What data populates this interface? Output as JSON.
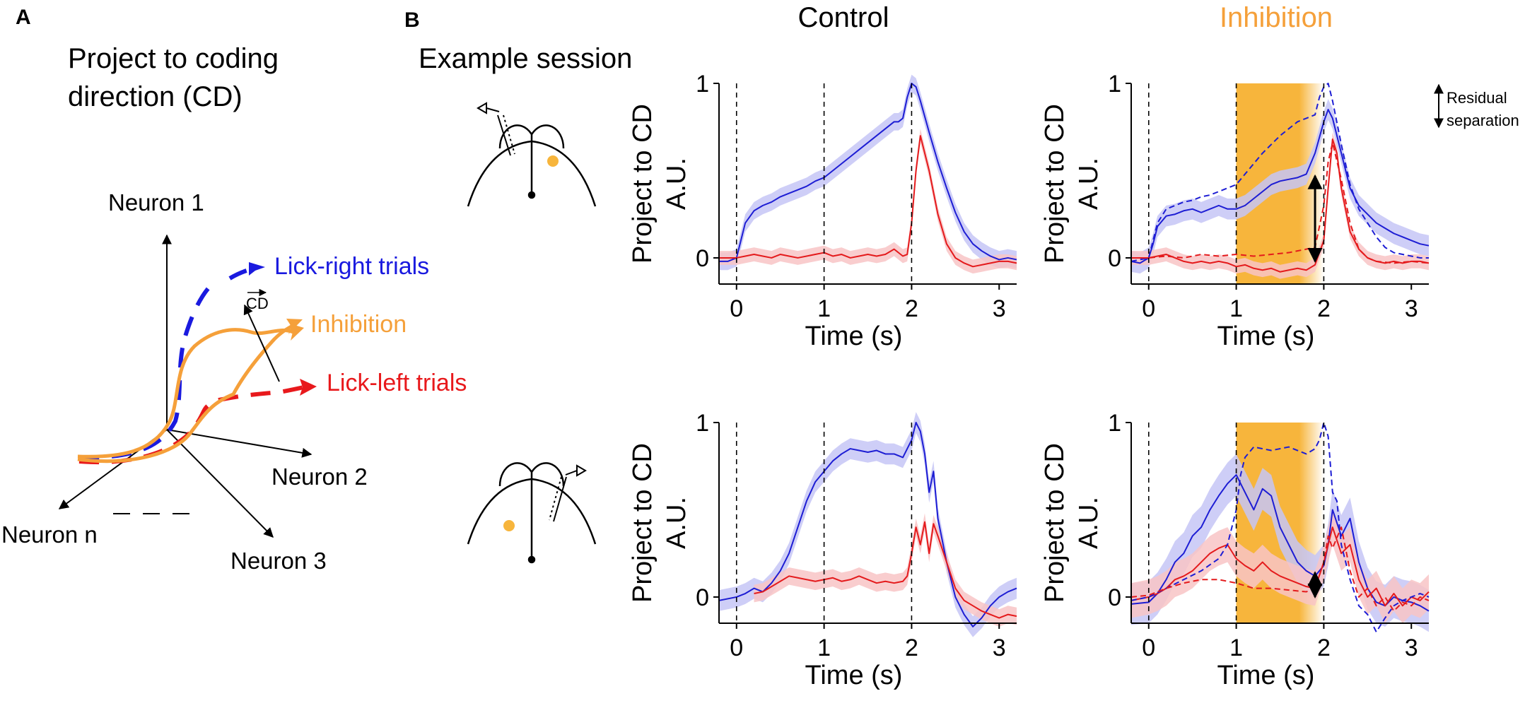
{
  "panel_a": {
    "letter": "A",
    "title_lines": [
      "Project to coding",
      "direction (CD)"
    ],
    "axes": {
      "neuron1": "Neuron 1",
      "neuron2": "Neuron 2",
      "neuron3": "Neuron 3",
      "neuron_n": "Neuron n"
    },
    "traj_labels": {
      "right": "Lick-right trials",
      "inhibition": "Inhibition",
      "left": "Lick-left trials",
      "cd": "CD"
    },
    "colors": {
      "right": "#1a1adf",
      "left": "#e8191c",
      "inhibition": "#f5a03a",
      "axis": "#000000"
    }
  },
  "panel_b": {
    "letter": "B",
    "example_label": "Example session",
    "col_titles": {
      "control": "Control",
      "inhibition": "Inhibition"
    },
    "legend": {
      "line1": "Residual",
      "line2": "separation"
    },
    "ylabel_line1": "Project to CD",
    "ylabel_line2": "A.U.",
    "xlabel": "Time (s)",
    "colors": {
      "right": "#1d1dd4",
      "left": "#e41a1c",
      "right_band": "#c5c5f6",
      "left_band": "#f8c4c6",
      "stim": "#f7b53c"
    }
  },
  "chart_data": [
    {
      "id": "control-top",
      "type": "line",
      "xlabel": "Time (s)",
      "ylabel": "Project to CD A.U.",
      "xlim": [
        -0.2,
        3.2
      ],
      "ylim": [
        -0.15,
        1.0
      ],
      "xticks": [
        0,
        1,
        2,
        3
      ],
      "yticks": [
        0,
        1
      ],
      "vlines": [
        0,
        1,
        2
      ],
      "series": [
        {
          "x": [
            -0.2,
            -0.1,
            0,
            0.05,
            0.1,
            0.2,
            0.3,
            0.4,
            0.5,
            0.6,
            0.7,
            0.8,
            0.9,
            1.0,
            1.1,
            1.2,
            1.3,
            1.4,
            1.5,
            1.6,
            1.7,
            1.8,
            1.85,
            1.9,
            1.95,
            2.0,
            2.05,
            2.1,
            2.2,
            2.3,
            2.4,
            2.5,
            2.6,
            2.7,
            2.8,
            2.9,
            3.0,
            3.1,
            3.2
          ],
          "y": [
            -0.02,
            -0.02,
            0.0,
            0.1,
            0.2,
            0.27,
            0.3,
            0.32,
            0.35,
            0.37,
            0.39,
            0.41,
            0.44,
            0.46,
            0.5,
            0.54,
            0.58,
            0.62,
            0.66,
            0.7,
            0.74,
            0.78,
            0.78,
            0.8,
            0.92,
            1.0,
            0.98,
            0.9,
            0.72,
            0.55,
            0.4,
            0.26,
            0.15,
            0.08,
            0.04,
            0.01,
            -0.01,
            0.0,
            -0.01
          ],
          "band": 0.05
        },
        {
          "x": [
            -0.2,
            0,
            0.1,
            0.2,
            0.3,
            0.4,
            0.5,
            0.6,
            0.7,
            0.8,
            0.9,
            1.0,
            1.1,
            1.2,
            1.3,
            1.4,
            1.5,
            1.6,
            1.7,
            1.8,
            1.9,
            1.95,
            2.0,
            2.05,
            2.1,
            2.2,
            2.3,
            2.4,
            2.5,
            2.6,
            2.7,
            2.8,
            2.9,
            3.0,
            3.1,
            3.2
          ],
          "y": [
            0.0,
            0.0,
            0.01,
            0.02,
            0.01,
            0.0,
            0.02,
            0.01,
            0.0,
            0.01,
            0.02,
            0.03,
            0.01,
            0.02,
            0.0,
            0.01,
            0.02,
            0.01,
            0.02,
            0.05,
            0.01,
            0.02,
            0.2,
            0.5,
            0.7,
            0.5,
            0.25,
            0.08,
            0.0,
            -0.03,
            -0.05,
            -0.04,
            -0.03,
            -0.02,
            -0.02,
            -0.03
          ],
          "band": 0.04
        }
      ]
    },
    {
      "id": "inhibition-top",
      "type": "line",
      "xlabel": "Time (s)",
      "ylabel": "Project to CD A.U.",
      "xlim": [
        -0.2,
        3.2
      ],
      "ylim": [
        -0.15,
        1.0
      ],
      "xticks": [
        0,
        1,
        2,
        3
      ],
      "yticks": [
        0,
        1
      ],
      "vlines": [
        0,
        1,
        2
      ],
      "stim": [
        1.0,
        2.0
      ],
      "arrow": {
        "x": 1.9,
        "y1": 0.47,
        "y2": -0.02
      },
      "series": [
        {
          "x": [
            -0.2,
            -0.1,
            0,
            0.05,
            0.1,
            0.2,
            0.3,
            0.4,
            0.5,
            0.6,
            0.7,
            0.8,
            0.9,
            1.0,
            1.1,
            1.2,
            1.3,
            1.4,
            1.5,
            1.6,
            1.7,
            1.8,
            1.9,
            2.0,
            2.05,
            2.1,
            2.2,
            2.3,
            2.4,
            2.5,
            2.6,
            2.7,
            2.8,
            2.9,
            3.0,
            3.1,
            3.2
          ],
          "y": [
            -0.02,
            -0.03,
            0.0,
            0.08,
            0.18,
            0.24,
            0.25,
            0.27,
            0.28,
            0.26,
            0.28,
            0.3,
            0.28,
            0.28,
            0.3,
            0.34,
            0.38,
            0.42,
            0.44,
            0.45,
            0.46,
            0.48,
            0.6,
            0.78,
            0.85,
            0.8,
            0.6,
            0.4,
            0.3,
            0.25,
            0.2,
            0.17,
            0.14,
            0.12,
            0.1,
            0.08,
            0.07
          ],
          "band": 0.06
        },
        {
          "x": [
            -0.2,
            0,
            0.1,
            0.2,
            0.3,
            0.4,
            0.5,
            0.6,
            0.7,
            0.8,
            0.9,
            1.0,
            1.1,
            1.2,
            1.3,
            1.4,
            1.5,
            1.6,
            1.7,
            1.8,
            1.9,
            2.0,
            2.05,
            2.1,
            2.15,
            2.2,
            2.3,
            2.4,
            2.5,
            2.6,
            2.7,
            2.8,
            2.9,
            3.0,
            3.1,
            3.2
          ],
          "y": [
            0.0,
            0.0,
            0.01,
            0.02,
            0.0,
            -0.02,
            -0.03,
            -0.02,
            -0.03,
            -0.02,
            -0.03,
            -0.05,
            -0.04,
            -0.06,
            -0.07,
            -0.06,
            -0.08,
            -0.07,
            -0.06,
            -0.07,
            -0.04,
            0.1,
            0.4,
            0.68,
            0.6,
            0.4,
            0.15,
            0.05,
            0.0,
            -0.02,
            -0.03,
            -0.02,
            -0.03,
            -0.02,
            -0.02,
            -0.03
          ],
          "band": 0.04
        },
        {
          "x": [
            -0.2,
            0,
            0.05,
            0.1,
            0.2,
            0.3,
            0.4,
            0.5,
            0.6,
            0.7,
            0.8,
            0.9,
            1.0,
            1.1,
            1.2,
            1.3,
            1.4,
            1.5,
            1.6,
            1.7,
            1.8,
            1.9,
            1.95,
            2.0,
            2.05,
            2.1,
            2.2,
            2.3,
            2.4,
            2.5,
            2.6,
            2.7,
            2.8,
            2.9,
            3.0,
            3.1,
            3.2
          ],
          "y": [
            -0.02,
            0.0,
            0.1,
            0.2,
            0.28,
            0.3,
            0.32,
            0.33,
            0.35,
            0.36,
            0.38,
            0.4,
            0.42,
            0.48,
            0.54,
            0.6,
            0.65,
            0.7,
            0.74,
            0.78,
            0.8,
            0.82,
            0.92,
            0.98,
            1.0,
            0.9,
            0.65,
            0.42,
            0.28,
            0.2,
            0.12,
            0.06,
            0.03,
            0.02,
            0.01,
            0.0,
            0.0
          ],
          "band": 0
        },
        {
          "x": [
            -0.2,
            0,
            0.2,
            0.4,
            0.6,
            0.8,
            1.0,
            1.2,
            1.4,
            1.6,
            1.8,
            1.9,
            2.0,
            2.05,
            2.1,
            2.2,
            2.3,
            2.4,
            2.5,
            2.6,
            2.8,
            3.0,
            3.2
          ],
          "y": [
            0.0,
            0.0,
            0.01,
            0.0,
            0.02,
            0.01,
            0.02,
            0.01,
            0.02,
            0.03,
            0.05,
            0.06,
            0.3,
            0.55,
            0.66,
            0.45,
            0.2,
            0.05,
            0.0,
            -0.02,
            -0.03,
            -0.02,
            -0.03
          ],
          "band": 0
        }
      ]
    },
    {
      "id": "control-bottom",
      "type": "line",
      "xlabel": "Time (s)",
      "ylabel": "Project to CD A.U.",
      "xlim": [
        -0.2,
        3.2
      ],
      "ylim": [
        -0.15,
        1.0
      ],
      "xticks": [
        0,
        1,
        2,
        3
      ],
      "yticks": [
        0,
        1
      ],
      "vlines": [
        0,
        1,
        2
      ],
      "series": [
        {
          "x": [
            -0.2,
            0,
            0.1,
            0.2,
            0.3,
            0.4,
            0.5,
            0.6,
            0.7,
            0.8,
            0.9,
            1.0,
            1.1,
            1.2,
            1.3,
            1.4,
            1.5,
            1.6,
            1.7,
            1.8,
            1.9,
            1.95,
            2.0,
            2.05,
            2.1,
            2.15,
            2.2,
            2.25,
            2.3,
            2.4,
            2.5,
            2.6,
            2.7,
            2.8,
            2.9,
            3.0,
            3.1,
            3.2
          ],
          "y": [
            -0.02,
            0.0,
            0.02,
            0.05,
            0.03,
            0.08,
            0.15,
            0.25,
            0.4,
            0.55,
            0.66,
            0.72,
            0.78,
            0.82,
            0.85,
            0.84,
            0.83,
            0.84,
            0.82,
            0.82,
            0.8,
            0.85,
            0.9,
            1.0,
            0.95,
            0.82,
            0.6,
            0.72,
            0.45,
            0.2,
            0.0,
            -0.1,
            -0.17,
            -0.12,
            -0.05,
            0.0,
            0.03,
            0.05
          ],
          "band": 0.06
        },
        {
          "x": [
            0.2,
            0.3,
            0.4,
            0.5,
            0.6,
            0.7,
            0.8,
            0.9,
            1.0,
            1.1,
            1.2,
            1.3,
            1.4,
            1.5,
            1.6,
            1.7,
            1.8,
            1.9,
            1.95,
            2.0,
            2.05,
            2.1,
            2.15,
            2.2,
            2.25,
            2.3,
            2.4,
            2.5,
            2.6,
            2.7,
            2.8,
            2.9,
            3.0,
            3.1,
            3.2
          ],
          "y": [
            0.02,
            0.03,
            0.06,
            0.09,
            0.12,
            0.11,
            0.1,
            0.09,
            0.1,
            0.11,
            0.09,
            0.1,
            0.12,
            0.1,
            0.08,
            0.09,
            0.08,
            0.09,
            0.12,
            0.25,
            0.4,
            0.3,
            0.43,
            0.25,
            0.42,
            0.35,
            0.2,
            0.05,
            -0.02,
            -0.05,
            -0.08,
            -0.1,
            -0.12,
            -0.1,
            -0.11
          ],
          "band": 0.05
        }
      ]
    },
    {
      "id": "inhibition-bottom",
      "type": "line",
      "xlabel": "Time (s)",
      "ylabel": "Project to CD A.U.",
      "xlim": [
        -0.2,
        3.2
      ],
      "ylim": [
        -0.15,
        1.0
      ],
      "xticks": [
        0,
        1,
        2,
        3
      ],
      "yticks": [
        0,
        1
      ],
      "vlines": [
        0,
        1,
        2
      ],
      "stim": [
        1.0,
        2.0
      ],
      "arrow": {
        "x": 1.9,
        "y1": 0.14,
        "y2": 0.0
      },
      "series": [
        {
          "x": [
            -0.2,
            0,
            0.1,
            0.2,
            0.3,
            0.4,
            0.5,
            0.6,
            0.7,
            0.8,
            0.9,
            1.0,
            1.1,
            1.2,
            1.3,
            1.4,
            1.5,
            1.6,
            1.7,
            1.8,
            1.9,
            2.0,
            2.05,
            2.1,
            2.2,
            2.3,
            2.4,
            2.5,
            2.6,
            2.7,
            2.8,
            2.9,
            3.0,
            3.1,
            3.2
          ],
          "y": [
            -0.04,
            -0.03,
            0.02,
            0.1,
            0.2,
            0.25,
            0.35,
            0.4,
            0.5,
            0.58,
            0.65,
            0.7,
            0.6,
            0.5,
            0.62,
            0.58,
            0.4,
            0.3,
            0.2,
            0.15,
            0.12,
            0.18,
            0.3,
            0.5,
            0.35,
            0.45,
            0.2,
            0.05,
            -0.03,
            -0.05,
            0.0,
            -0.02,
            -0.03,
            -0.05,
            -0.08
          ],
          "band": 0.12
        },
        {
          "x": [
            -0.2,
            0,
            0.1,
            0.2,
            0.3,
            0.4,
            0.5,
            0.6,
            0.7,
            0.8,
            0.9,
            1.0,
            1.1,
            1.2,
            1.3,
            1.4,
            1.5,
            1.6,
            1.7,
            1.8,
            1.9,
            2.0,
            2.05,
            2.1,
            2.2,
            2.3,
            2.4,
            2.5,
            2.6,
            2.7,
            2.8,
            2.9,
            3.0,
            3.1,
            3.2
          ],
          "y": [
            -0.02,
            0.0,
            0.02,
            0.05,
            0.1,
            0.12,
            0.15,
            0.2,
            0.25,
            0.28,
            0.3,
            0.22,
            0.18,
            0.15,
            0.2,
            0.15,
            0.12,
            0.1,
            0.08,
            0.06,
            0.05,
            0.2,
            0.3,
            0.4,
            0.25,
            0.3,
            0.1,
            0.0,
            0.05,
            -0.05,
            0.02,
            -0.05,
            0.0,
            -0.02,
            0.03
          ],
          "band": 0.1
        },
        {
          "x": [
            -0.2,
            0,
            0.2,
            0.4,
            0.6,
            0.8,
            0.9,
            1.0,
            1.05,
            1.1,
            1.2,
            1.3,
            1.4,
            1.5,
            1.6,
            1.7,
            1.8,
            1.9,
            1.95,
            2.0,
            2.05,
            2.1,
            2.15,
            2.2,
            2.3,
            2.4,
            2.5,
            2.6,
            2.7,
            2.8,
            2.9,
            3.0,
            3.1,
            3.2
          ],
          "y": [
            -0.02,
            0.0,
            0.05,
            0.1,
            0.15,
            0.22,
            0.3,
            0.5,
            0.7,
            0.8,
            0.86,
            0.85,
            0.84,
            0.85,
            0.86,
            0.84,
            0.82,
            0.85,
            0.9,
            1.0,
            0.92,
            0.6,
            0.55,
            0.3,
            0.1,
            -0.05,
            -0.1,
            -0.2,
            -0.12,
            -0.05,
            -0.02,
            0.0,
            0.02,
            0.0
          ],
          "band": 0
        },
        {
          "x": [
            -0.2,
            0,
            0.2,
            0.4,
            0.6,
            0.8,
            1.0,
            1.2,
            1.4,
            1.6,
            1.8,
            1.9,
            2.0,
            2.05,
            2.1,
            2.2,
            2.3,
            2.4,
            2.5,
            2.6,
            2.7,
            2.8,
            2.9,
            3.0,
            3.1,
            3.2
          ],
          "y": [
            0.0,
            0.01,
            0.05,
            0.08,
            0.1,
            0.1,
            0.08,
            0.05,
            0.05,
            0.04,
            0.03,
            0.05,
            0.2,
            0.35,
            0.28,
            0.4,
            0.15,
            0.0,
            0.05,
            -0.05,
            0.0,
            -0.08,
            -0.03,
            -0.05,
            0.0,
            -0.02
          ],
          "band": 0
        }
      ]
    }
  ]
}
